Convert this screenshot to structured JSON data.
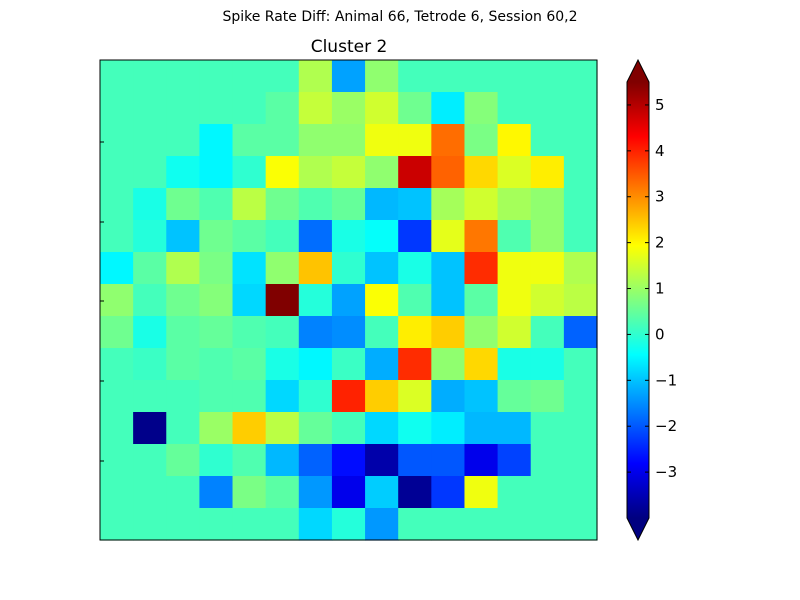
{
  "suptitle": "Spike Rate Diff: Animal 66, Tetrode 6, Session 60,2",
  "chart_data": {
    "type": "heatmap",
    "title": "Cluster 2",
    "colormap": "jet",
    "clim": [
      -4.0,
      5.5
    ],
    "colorbar": {
      "ticks": [
        -3,
        -2,
        -1,
        0,
        1,
        2,
        3,
        4,
        5
      ],
      "tick_labels": [
        "−3",
        "−2",
        "−1",
        "0",
        "1",
        "2",
        "3",
        "4",
        "5"
      ],
      "extend": "both"
    },
    "nrows": 15,
    "ncols": 15,
    "grid": [
      [
        0.2,
        0.2,
        0.2,
        0.2,
        0.2,
        0.2,
        1.2,
        -1.3,
        0.9,
        0.2,
        0.2,
        0.2,
        0.2,
        0.2,
        0.2
      ],
      [
        0.2,
        0.2,
        0.2,
        0.2,
        0.2,
        0.4,
        1.4,
        1.0,
        1.5,
        0.6,
        -0.6,
        0.8,
        0.2,
        0.2,
        0.2
      ],
      [
        0.2,
        0.2,
        0.2,
        -0.5,
        0.4,
        0.4,
        0.9,
        0.9,
        1.8,
        1.8,
        3.3,
        0.7,
        2.0,
        0.2,
        0.2
      ],
      [
        0.2,
        0.2,
        -0.3,
        -0.5,
        0.0,
        1.9,
        1.2,
        1.4,
        0.9,
        4.8,
        3.4,
        2.3,
        1.6,
        2.1,
        0.2
      ],
      [
        0.2,
        -0.2,
        0.6,
        0.3,
        1.3,
        0.6,
        0.3,
        0.5,
        -1.1,
        -1.0,
        1.1,
        1.5,
        1.1,
        0.9,
        0.2
      ],
      [
        0.2,
        -0.1,
        -1.0,
        0.6,
        0.4,
        0.2,
        -1.8,
        -0.2,
        -0.4,
        -2.3,
        1.7,
        3.2,
        0.3,
        0.9,
        0.2
      ],
      [
        -0.5,
        0.4,
        1.2,
        0.7,
        -0.7,
        0.9,
        2.5,
        0.0,
        -1.0,
        -0.2,
        -1.0,
        3.9,
        1.8,
        1.8,
        1.2
      ],
      [
        0.9,
        0.2,
        0.6,
        0.8,
        -0.8,
        5.5,
        -0.1,
        -1.3,
        1.9,
        0.3,
        -1.0,
        0.4,
        1.8,
        1.5,
        1.3
      ],
      [
        0.6,
        -0.2,
        0.4,
        0.5,
        0.3,
        0.2,
        -1.6,
        -1.5,
        0.2,
        2.1,
        2.4,
        0.9,
        1.5,
        0.2,
        -1.9
      ],
      [
        0.2,
        0.1,
        0.4,
        0.3,
        0.4,
        -0.2,
        -0.5,
        0.1,
        -1.2,
        3.9,
        0.9,
        2.3,
        -0.2,
        -0.2,
        0.2
      ],
      [
        0.2,
        0.2,
        0.2,
        0.3,
        0.3,
        -0.8,
        0.0,
        4.0,
        2.4,
        1.6,
        -1.2,
        -1.0,
        0.5,
        0.6,
        0.2
      ],
      [
        0.2,
        -3.9,
        0.2,
        1.0,
        2.4,
        1.3,
        0.5,
        0.2,
        -0.8,
        -0.3,
        -0.6,
        -1.1,
        -1.1,
        0.2,
        0.2
      ],
      [
        0.2,
        0.2,
        0.5,
        0.0,
        0.3,
        -1.1,
        -1.9,
        -2.7,
        -3.6,
        -2.0,
        -2.0,
        -3.0,
        -2.2,
        0.2,
        0.2
      ],
      [
        0.2,
        0.2,
        0.2,
        -1.6,
        0.7,
        0.4,
        -1.4,
        -3.0,
        -0.9,
        -3.8,
        -2.3,
        1.8,
        0.2,
        0.2,
        0.2
      ],
      [
        0.2,
        0.2,
        0.2,
        0.2,
        0.2,
        0.2,
        -0.8,
        -0.1,
        -1.4,
        0.2,
        0.2,
        0.2,
        0.2,
        0.2,
        0.2
      ]
    ]
  }
}
